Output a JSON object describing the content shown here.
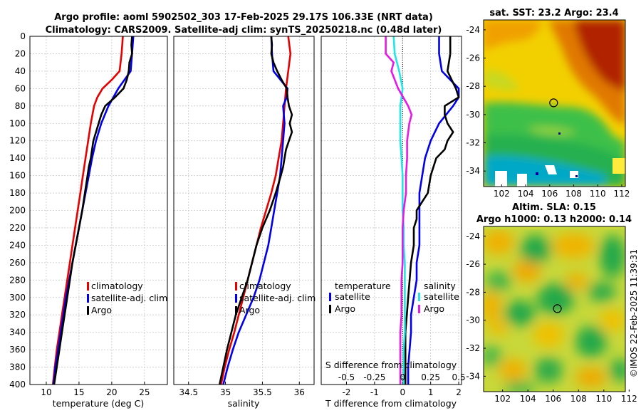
{
  "header": {
    "title_line1": "Argo profile: aoml 5902502_303 17-Feb-2025 29.17S 106.33E (NRT data)",
    "title_line2": "Climatology: CARS2009. Satellite-adj clim: synTS_20250218.nc (0.48d later)"
  },
  "copyright": "©IMOS 22-Feb-2025 11:39:31",
  "depth_axis": {
    "ylim": [
      400,
      0
    ],
    "ticks": [
      "0",
      "20",
      "40",
      "60",
      "80",
      "100",
      "120",
      "140",
      "160",
      "180",
      "200",
      "220",
      "240",
      "260",
      "280",
      "300",
      "320",
      "340",
      "360",
      "380",
      "400"
    ]
  },
  "colors": {
    "climatology": "#e60000",
    "satellite": "#0000ee",
    "argo": "#000000",
    "sal_satellite": "#22e5e5",
    "sal_argo": "#e619e6",
    "grid": "#c8c8c8"
  },
  "chart_data": [
    {
      "type": "line",
      "name": "temperature-profile",
      "xlabel": "temperature (deg C)",
      "xlim": [
        7.5,
        28.5
      ],
      "xticks": [
        "10",
        "15",
        "20",
        "25"
      ],
      "ylabel": "depth",
      "legend": [
        "climatology",
        "satellite-adj. clim",
        "Argo"
      ],
      "series": [
        {
          "name": "climatology",
          "depth": [
            0,
            10,
            20,
            40,
            50,
            60,
            70,
            80,
            100,
            120,
            140,
            160,
            180,
            200,
            220,
            240,
            260,
            280,
            300,
            320,
            340,
            360,
            380,
            400
          ],
          "values": [
            21.7,
            21.6,
            21.5,
            21.2,
            20.0,
            18.6,
            17.8,
            17.3,
            16.8,
            16.4,
            16.0,
            15.6,
            15.2,
            14.8,
            14.4,
            14.0,
            13.6,
            13.2,
            12.8,
            12.4,
            12.0,
            11.6,
            11.3,
            11.0
          ]
        },
        {
          "name": "satellite-adj. clim",
          "depth": [
            0,
            20,
            40,
            60,
            80,
            100,
            120,
            140,
            160,
            180,
            200,
            220,
            240,
            260,
            280,
            300,
            320,
            340,
            360,
            380,
            400
          ],
          "values": [
            23.3,
            23.1,
            22.9,
            21.0,
            19.5,
            18.4,
            17.6,
            17.0,
            16.5,
            16.0,
            15.5,
            15.0,
            14.5,
            14.0,
            13.5,
            13.0,
            12.6,
            12.2,
            11.8,
            11.4,
            11.1
          ]
        },
        {
          "name": "Argo",
          "depth": [
            0,
            10,
            20,
            30,
            40,
            50,
            60,
            70,
            80,
            90,
            100,
            110,
            120,
            130,
            140,
            150,
            160,
            180,
            200,
            220,
            240,
            260,
            280,
            300,
            320,
            340,
            360,
            380,
            400
          ],
          "values": [
            23.1,
            23.0,
            23.1,
            22.7,
            22.6,
            22.3,
            21.8,
            20.5,
            19.0,
            18.4,
            18.0,
            17.6,
            17.2,
            17.0,
            16.8,
            16.5,
            16.3,
            15.9,
            15.5,
            15.0,
            14.5,
            14.0,
            13.6,
            13.2,
            12.8,
            12.4,
            12.0,
            11.6,
            11.2
          ]
        }
      ]
    },
    {
      "type": "line",
      "name": "salinity-profile",
      "xlabel": "salinity",
      "xlim": [
        34.3,
        36.2
      ],
      "xticks": [
        "34.5",
        "35",
        "35.5",
        "36"
      ],
      "legend": [
        "climatology",
        "satellite-adj. clim",
        "Argo"
      ],
      "series": [
        {
          "name": "climatology",
          "depth": [
            0,
            20,
            40,
            60,
            80,
            100,
            120,
            140,
            160,
            180,
            200,
            220,
            240,
            260,
            280,
            300,
            320,
            340,
            360,
            380,
            400
          ],
          "values": [
            35.85,
            35.88,
            35.85,
            35.82,
            35.8,
            35.78,
            35.76,
            35.72,
            35.68,
            35.62,
            35.55,
            35.48,
            35.42,
            35.36,
            35.3,
            35.24,
            35.18,
            35.12,
            35.05,
            34.99,
            34.94
          ]
        },
        {
          "name": "satellite-adj. clim",
          "depth": [
            0,
            20,
            40,
            60,
            70,
            80,
            100,
            120,
            140,
            160,
            180,
            200,
            220,
            240,
            260,
            280,
            300,
            320,
            340,
            360,
            380,
            400
          ],
          "values": [
            35.62,
            35.63,
            35.65,
            35.84,
            35.83,
            35.78,
            35.8,
            35.78,
            35.76,
            35.74,
            35.7,
            35.66,
            35.62,
            35.58,
            35.52,
            35.46,
            35.38,
            35.28,
            35.18,
            35.1,
            35.03,
            34.97
          ]
        },
        {
          "name": "Argo",
          "depth": [
            0,
            10,
            20,
            30,
            40,
            50,
            60,
            70,
            80,
            90,
            100,
            110,
            120,
            130,
            140,
            150,
            160,
            180,
            200,
            220,
            240,
            260,
            280,
            300,
            320,
            340,
            360,
            380,
            400
          ],
          "values": [
            35.62,
            35.63,
            35.62,
            35.65,
            35.7,
            35.76,
            35.83,
            35.84,
            35.86,
            35.9,
            35.87,
            35.9,
            35.86,
            35.82,
            35.8,
            35.78,
            35.75,
            35.68,
            35.6,
            35.5,
            35.42,
            35.36,
            35.3,
            35.22,
            35.14,
            35.08,
            35.02,
            34.97,
            34.92
          ]
        }
      ]
    },
    {
      "type": "line",
      "name": "difference-profile",
      "xlabel": "T difference from climatology",
      "xlim": [
        -2.9,
        2.1
      ],
      "xticks": [
        "-2",
        "-1",
        "0",
        "1",
        "2"
      ],
      "xlabel2": "S difference from climatology",
      "xticks2": [
        "-0.5",
        "-0.25",
        "0",
        "0.25",
        "0.5"
      ],
      "legend_temperature": [
        "temperature",
        "satellite",
        "Argo"
      ],
      "legend_salinity": [
        "salinity",
        "satellite",
        "Argo"
      ],
      "series": [
        {
          "name": "temperature satellite",
          "depth": [
            0,
            20,
            40,
            60,
            70,
            80,
            100,
            120,
            140,
            160,
            180,
            200,
            220,
            240,
            260,
            280,
            300,
            320,
            340,
            360,
            380,
            400
          ],
          "values": [
            1.3,
            1.3,
            1.4,
            2.0,
            2.0,
            1.8,
            1.3,
            1.0,
            0.8,
            0.7,
            0.6,
            0.6,
            0.6,
            0.6,
            0.5,
            0.5,
            0.4,
            0.3,
            0.3,
            0.25,
            0.2,
            0.2
          ]
        },
        {
          "name": "temperature Argo",
          "depth": [
            0,
            20,
            40,
            60,
            70,
            80,
            90,
            100,
            110,
            120,
            130,
            140,
            160,
            180,
            190,
            200,
            210,
            220,
            240,
            260,
            280,
            300,
            320,
            340,
            360,
            380,
            400
          ],
          "values": [
            1.7,
            1.7,
            1.6,
            1.9,
            2.0,
            1.5,
            1.5,
            1.6,
            1.8,
            1.6,
            1.5,
            1.2,
            1.0,
            0.9,
            0.7,
            0.5,
            0.5,
            0.4,
            0.4,
            0.3,
            0.25,
            0.2,
            0.15,
            0.1,
            0.1,
            0.1,
            0.1
          ]
        },
        {
          "name": "salinity satellite",
          "depth": [
            0,
            20,
            40,
            60,
            80,
            100,
            120,
            140,
            160,
            180,
            200,
            220,
            240,
            260,
            280,
            300,
            320,
            340,
            360,
            380,
            400
          ],
          "values": [
            -0.08,
            -0.07,
            -0.03,
            0.0,
            -0.02,
            -0.02,
            -0.02,
            -0.01,
            0.0,
            0.0,
            0.0,
            0.01,
            0.01,
            0.02,
            0.02,
            0.02,
            0.02,
            0.02,
            0.01,
            0.01,
            0.01
          ]
        },
        {
          "name": "salinity Argo",
          "depth": [
            0,
            20,
            30,
            40,
            60,
            80,
            90,
            100,
            120,
            140,
            160,
            180,
            200,
            220,
            240,
            260,
            280,
            300,
            320,
            340,
            360,
            380,
            400
          ],
          "values": [
            -0.15,
            -0.15,
            -0.08,
            -0.1,
            -0.04,
            0.05,
            0.08,
            0.06,
            0.04,
            0.04,
            0.03,
            0.03,
            0.01,
            0.0,
            0.0,
            0.0,
            -0.01,
            -0.01,
            -0.01,
            -0.02,
            -0.02,
            -0.02,
            -0.02
          ]
        }
      ]
    },
    {
      "type": "heatmap",
      "name": "sst-map",
      "title": "sat. SST: 23.2 Argo: 23.4",
      "xlim": [
        100.5,
        112.3
      ],
      "ylim": [
        -35.1,
        -23.3
      ],
      "xticks": [
        "102",
        "104",
        "106",
        "108",
        "110",
        "112"
      ],
      "yticks": [
        "-24",
        "-26",
        "-28",
        "-30",
        "-32",
        "-34"
      ],
      "marker": {
        "lon": 106.33,
        "lat": -29.17
      }
    },
    {
      "type": "heatmap",
      "name": "sla-map",
      "title_line1": "Altim. SLA: 0.15",
      "title_line2": "Argo h1000: 0.13 h2000: 0.14",
      "xlim": [
        100.5,
        111.7
      ],
      "ylim": [
        -35.1,
        -23.3
      ],
      "xticks": [
        "102",
        "104",
        "106",
        "108",
        "110",
        "112"
      ],
      "yticks": [
        "-24",
        "-26",
        "-28",
        "-30",
        "-32",
        "-34"
      ],
      "marker": {
        "lon": 106.33,
        "lat": -29.17
      }
    }
  ]
}
